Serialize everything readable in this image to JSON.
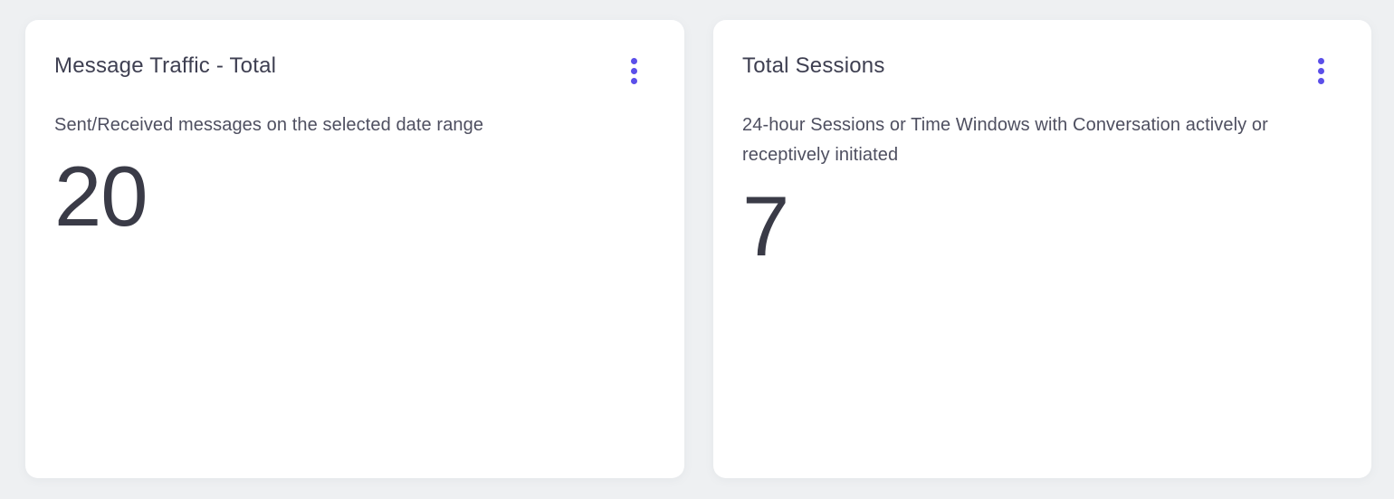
{
  "cards": [
    {
      "title": "Message Traffic - Total",
      "description": "Sent/Received messages on the selected date range",
      "value": "20",
      "menu_icon": "kebab-menu-icon"
    },
    {
      "title": "Total Sessions",
      "description": "24-hour Sessions or Time Windows with Conversation actively or receptively initiated",
      "value": "7",
      "menu_icon": "kebab-menu-icon"
    }
  ],
  "colors": {
    "page_background": "#eef0f2",
    "card_background": "#ffffff",
    "title_text": "#3e3f51",
    "description_text": "#4e4f60",
    "value_text": "#3a3b47",
    "menu_dots": "#5b4fe9"
  }
}
